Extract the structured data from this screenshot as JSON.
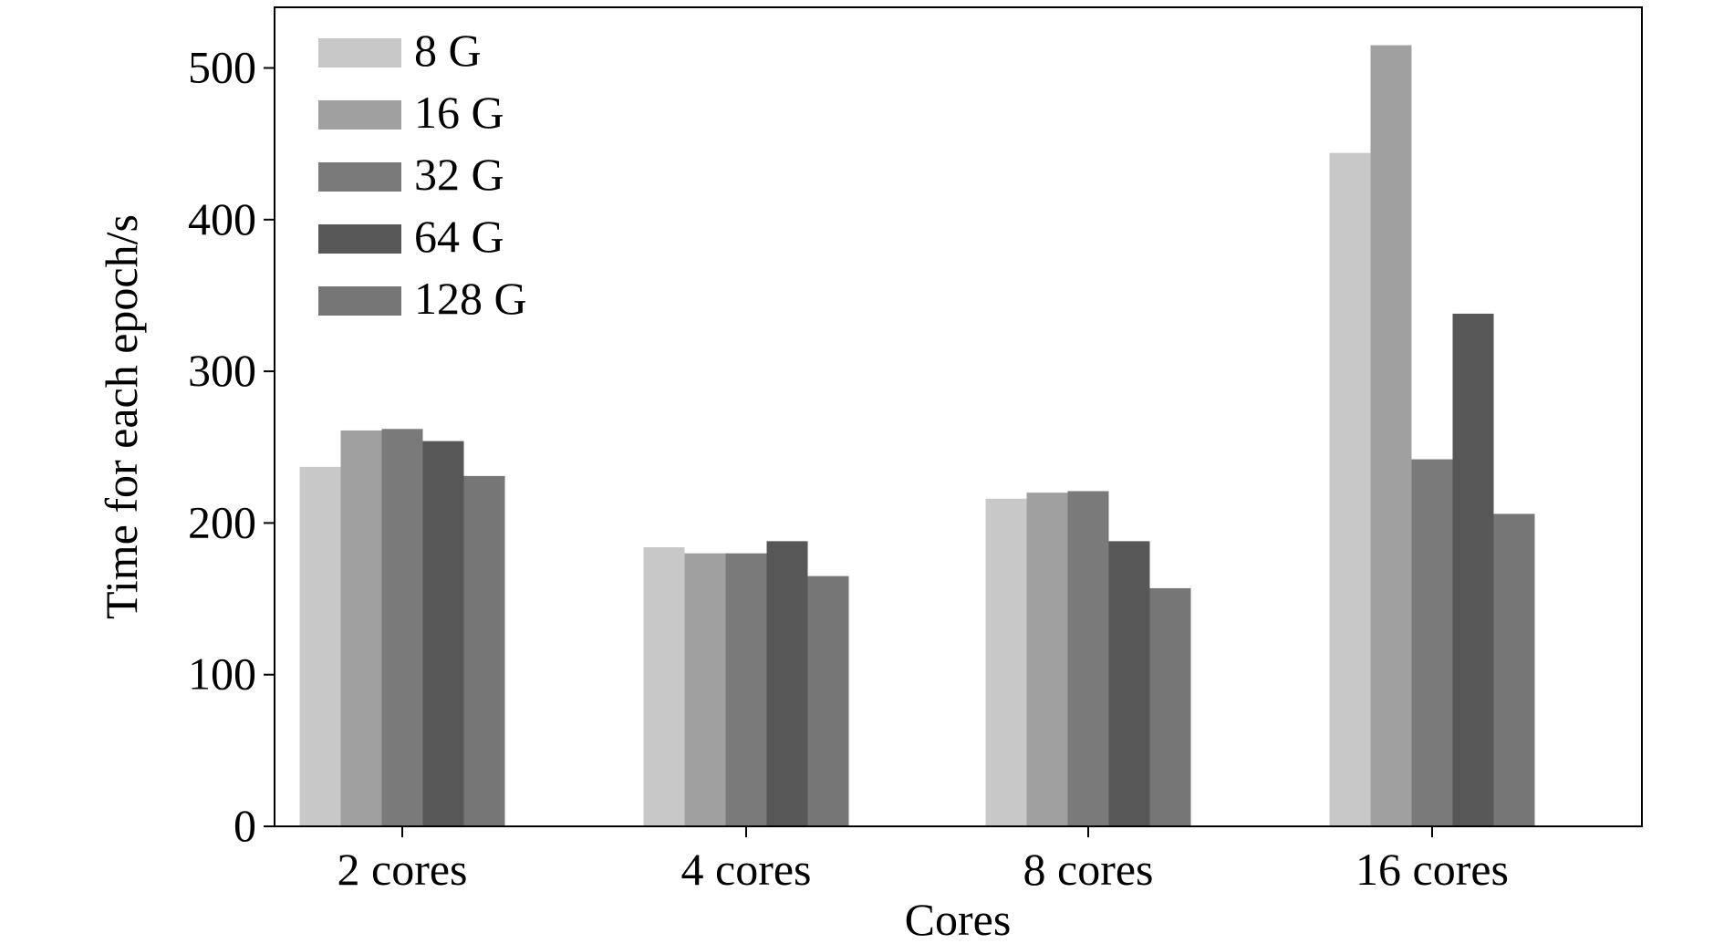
{
  "chart_data": {
    "type": "bar",
    "title": "",
    "xlabel": "Cores",
    "ylabel": "Time for each epoch/s",
    "categories": [
      "2 cores",
      "4 cores",
      "8 cores",
      "16 cores"
    ],
    "series": [
      {
        "name": "8 G",
        "color": "#c8c8c8",
        "values": [
          237,
          184,
          216,
          444
        ]
      },
      {
        "name": "16 G",
        "color": "#a0a0a0",
        "values": [
          261,
          180,
          220,
          515
        ]
      },
      {
        "name": "32 G",
        "color": "#7a7a7a",
        "values": [
          262,
          180,
          221,
          242
        ]
      },
      {
        "name": "64 G",
        "color": "#575757",
        "values": [
          254,
          188,
          188,
          338
        ]
      },
      {
        "name": "128 G",
        "color": "#767676",
        "values": [
          231,
          165,
          157,
          206
        ]
      }
    ],
    "ylim": [
      0,
      540
    ],
    "yticks": [
      0,
      100,
      200,
      300,
      400,
      500
    ],
    "grid": false,
    "legend_position": "top-left"
  }
}
